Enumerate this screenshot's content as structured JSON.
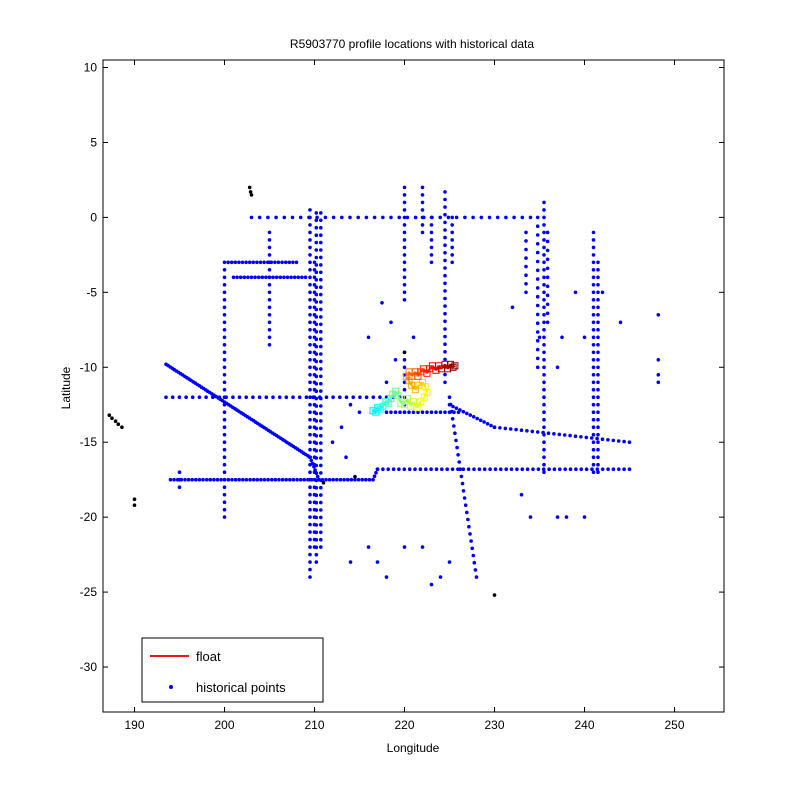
{
  "chart_data": {
    "type": "scatter",
    "title": "R5903770 profile locations with historical data",
    "xlabel": "Longitude",
    "ylabel": "Latitude",
    "xlim": [
      186.5,
      255.5
    ],
    "ylim": [
      -33,
      10.5
    ],
    "x_ticks": [
      190,
      200,
      210,
      220,
      230,
      240,
      250
    ],
    "y_ticks": [
      10,
      5,
      0,
      -5,
      -10,
      -15,
      -20,
      -25,
      -30
    ],
    "grid": false,
    "legend_position": "bottom-left",
    "legend": [
      {
        "label": "float",
        "color": "#e41a1c",
        "marker": "line"
      },
      {
        "label": "historical points",
        "color": "#0000ff",
        "marker": "dot"
      }
    ],
    "series": [
      {
        "name": "historical points",
        "color": "#0000ff",
        "segments": [
          {
            "from": [
              209.5,
              0.5
            ],
            "to": [
              209.5,
              -24
            ],
            "step": 0.5
          },
          {
            "from": [
              210.2,
              0.3
            ],
            "to": [
              210.2,
              -23
            ],
            "step": 0.5
          },
          {
            "from": [
              210.7,
              0.3
            ],
            "to": [
              210.7,
              -22
            ],
            "step": 0.5
          },
          {
            "from": [
              210.0,
              -3
            ],
            "to": [
              210.0,
              -22
            ],
            "step": 0.5
          },
          {
            "from": [
              200,
              -3.5
            ],
            "to": [
              200,
              -20
            ],
            "step": 0.5
          },
          {
            "from": [
              205,
              -1
            ],
            "to": [
              205,
              -8.5
            ],
            "step": 0.5
          },
          {
            "from": [
              220,
              2
            ],
            "to": [
              220,
              -5.5
            ],
            "step": 0.5
          },
          {
            "from": [
              220,
              -9
            ],
            "to": [
              220,
              -13
            ],
            "step": 0.5
          },
          {
            "from": [
              222,
              2
            ],
            "to": [
              222,
              -1
            ],
            "step": 0.5
          },
          {
            "from": [
              224.5,
              1.7
            ],
            "to": [
              224.5,
              -11
            ],
            "step": 0.5
          },
          {
            "from": [
              225.3,
              0
            ],
            "to": [
              225.3,
              -3
            ],
            "step": 0.5
          },
          {
            "from": [
              223,
              0
            ],
            "to": [
              223,
              -3
            ],
            "step": 0.5
          },
          {
            "from": [
              235.5,
              1
            ],
            "to": [
              235.5,
              -17
            ],
            "step": 0.5
          },
          {
            "from": [
              234.8,
              0
            ],
            "to": [
              234.8,
              -10
            ],
            "step": 0.6
          },
          {
            "from": [
              235.9,
              -1
            ],
            "to": [
              235.9,
              -7
            ],
            "step": 0.6
          },
          {
            "from": [
              233.5,
              -1
            ],
            "to": [
              233.5,
              -5
            ],
            "step": 0.6
          },
          {
            "from": [
              241,
              -1
            ],
            "to": [
              241,
              -17
            ],
            "step": 0.5
          },
          {
            "from": [
              241.5,
              -3
            ],
            "to": [
              241.5,
              -17
            ],
            "step": 0.5
          },
          {
            "from": [
              203,
              0
            ],
            "to": [
              234,
              0
            ],
            "step": 0.9
          },
          {
            "from": [
              200,
              -3
            ],
            "to": [
              208,
              -3
            ],
            "step": 0.4
          },
          {
            "from": [
              201,
              -4
            ],
            "to": [
              209,
              -4
            ],
            "step": 0.4
          },
          {
            "from": [
              193.5,
              -12
            ],
            "to": [
              219.5,
              -12
            ],
            "step": 0.75
          },
          {
            "from": [
              193.5,
              -9.8
            ],
            "to": [
              209.5,
              -16
            ],
            "step": 0.25
          },
          {
            "from": [
              209.5,
              -16
            ],
            "to": [
              210.5,
              -17.5
            ],
            "step": 0.25
          },
          {
            "from": [
              194,
              -17.5
            ],
            "to": [
              216.5,
              -17.5
            ],
            "step": 0.4
          },
          {
            "from": [
              216.5,
              -17.5
            ],
            "to": [
              217,
              -16.8
            ],
            "step": 0.3
          },
          {
            "from": [
              217,
              -16.8
            ],
            "to": [
              245,
              -16.8
            ],
            "step": 0.6
          },
          {
            "from": [
              225,
              -12.5
            ],
            "to": [
              230,
              -14
            ],
            "step": 0.4
          },
          {
            "from": [
              230,
              -14
            ],
            "to": [
              245,
              -15
            ],
            "step": 0.6
          },
          {
            "from": [
              225,
              -12
            ],
            "to": [
              228,
              -24
            ],
            "step": 0.5
          },
          {
            "from": [
              218,
              -13
            ],
            "to": [
              226,
              -13
            ],
            "step": 0.5
          },
          {
            "from": [
              195,
              -17
            ],
            "to": [
              195,
              -18
            ],
            "step": 0.5
          }
        ],
        "points": [
          [
            217.5,
            -5.7
          ],
          [
            218.5,
            -7
          ],
          [
            216,
            -8
          ],
          [
            221,
            -8
          ],
          [
            219,
            -9.5
          ],
          [
            218,
            -11
          ],
          [
            232,
            -6
          ],
          [
            235,
            -8
          ],
          [
            237.5,
            -8
          ],
          [
            240,
            -8
          ],
          [
            239,
            -5
          ],
          [
            242,
            -5
          ],
          [
            237,
            -10
          ],
          [
            244,
            -7
          ],
          [
            248.2,
            -6.5
          ],
          [
            248.2,
            -9.5
          ],
          [
            248.2,
            -10.5
          ],
          [
            248.2,
            -11
          ],
          [
            233,
            -18.5
          ],
          [
            234,
            -20
          ],
          [
            237,
            -20
          ],
          [
            238,
            -20
          ],
          [
            240,
            -20
          ],
          [
            216,
            -22
          ],
          [
            217,
            -23
          ],
          [
            218,
            -24
          ],
          [
            220,
            -22
          ],
          [
            222,
            -22
          ],
          [
            223,
            -24.5
          ],
          [
            224,
            -24
          ],
          [
            225,
            -23
          ],
          [
            214,
            -23
          ],
          [
            215,
            -13
          ],
          [
            213,
            -14
          ],
          [
            212,
            -15
          ],
          [
            214,
            -12.5
          ],
          [
            213.5,
            -16
          ]
        ]
      },
      {
        "name": "",
        "color": "#000000",
        "points": [
          [
            202.8,
            2
          ],
          [
            202.9,
            1.7
          ],
          [
            203,
            1.5
          ],
          [
            187.2,
            -13.2
          ],
          [
            187.5,
            -13.4
          ],
          [
            187.9,
            -13.6
          ],
          [
            188.2,
            -13.8
          ],
          [
            188.6,
            -14
          ],
          [
            190,
            -18.8
          ],
          [
            190,
            -19.2
          ],
          [
            220,
            -9
          ],
          [
            214.5,
            -17.3
          ],
          [
            211,
            -17.7
          ],
          [
            230,
            -25.2
          ]
        ]
      },
      {
        "name": "float",
        "color_scale": "jet",
        "points": [
          [
            216.5,
            -12.9
          ],
          [
            216.8,
            -13
          ],
          [
            217,
            -12.7
          ],
          [
            217.3,
            -12.8
          ],
          [
            217.6,
            -12.6
          ],
          [
            217.9,
            -12.3
          ],
          [
            218.2,
            -12.4
          ],
          [
            218.5,
            -12.1
          ],
          [
            218.7,
            -11.8
          ],
          [
            219,
            -11.6
          ],
          [
            219.3,
            -11.9
          ],
          [
            219.6,
            -12.4
          ],
          [
            220,
            -12.5
          ],
          [
            220.3,
            -12.1
          ],
          [
            220.7,
            -12.6
          ],
          [
            221,
            -12.3
          ],
          [
            221.4,
            -12.7
          ],
          [
            221.8,
            -12.3
          ],
          [
            222.2,
            -12
          ],
          [
            222.5,
            -11.7
          ],
          [
            222.3,
            -11.3
          ],
          [
            222,
            -11
          ],
          [
            221.6,
            -11.2
          ],
          [
            221.2,
            -11.5
          ],
          [
            220.8,
            -11.2
          ],
          [
            220.5,
            -10.9
          ],
          [
            220.2,
            -10.6
          ],
          [
            220.5,
            -10.3
          ],
          [
            220.8,
            -10.6
          ],
          [
            221.2,
            -10.3
          ],
          [
            221.5,
            -10.6
          ],
          [
            221.8,
            -10.3
          ],
          [
            222.1,
            -10.1
          ],
          [
            222.5,
            -10.4
          ],
          [
            222.8,
            -10.1
          ],
          [
            223.1,
            -9.9
          ],
          [
            223.5,
            -10.2
          ],
          [
            223.8,
            -9.9
          ],
          [
            224.1,
            -10.1
          ],
          [
            224.5,
            -9.8
          ],
          [
            224.8,
            -10.1
          ],
          [
            225.1,
            -9.8
          ],
          [
            225.4,
            -10
          ],
          [
            225.6,
            -9.9
          ]
        ]
      }
    ]
  }
}
